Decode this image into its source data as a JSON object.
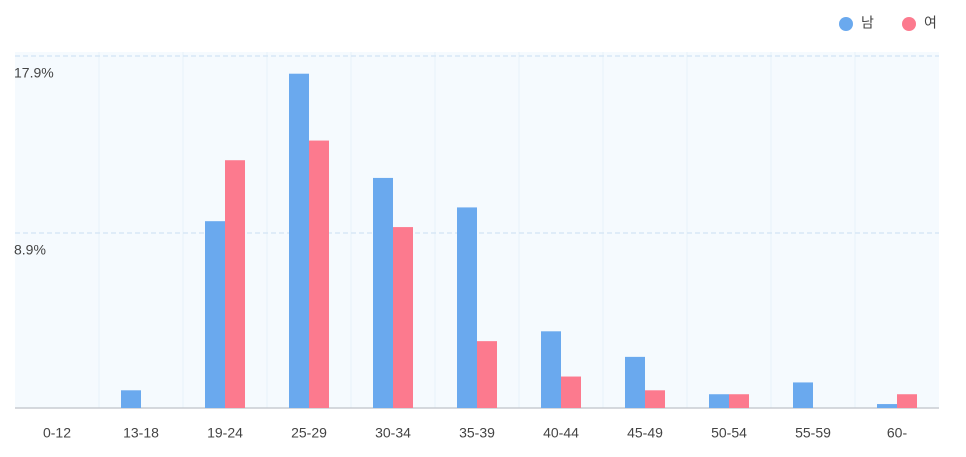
{
  "chart_data": {
    "type": "bar",
    "categories": [
      "0-12",
      "13-18",
      "19-24",
      "25-29",
      "30-34",
      "35-39",
      "40-44",
      "45-49",
      "50-54",
      "55-59",
      "60-"
    ],
    "series": [
      {
        "name": "남",
        "color": "#6aa9ee",
        "values": [
          0,
          0.9,
          9.5,
          17.0,
          11.7,
          10.2,
          3.9,
          2.6,
          0.7,
          1.3,
          0.2
        ]
      },
      {
        "name": "여",
        "color": "#fc7a8e",
        "values": [
          0,
          0,
          12.6,
          13.6,
          9.2,
          3.4,
          1.6,
          0.9,
          0.7,
          0,
          0.7
        ]
      }
    ],
    "ylim": [
      0,
      17.9
    ],
    "yticks": [
      {
        "value": 8.9,
        "label": "8.9%"
      },
      {
        "value": 17.9,
        "label": "17.9%"
      }
    ],
    "grid": true,
    "legend": "top-right"
  }
}
